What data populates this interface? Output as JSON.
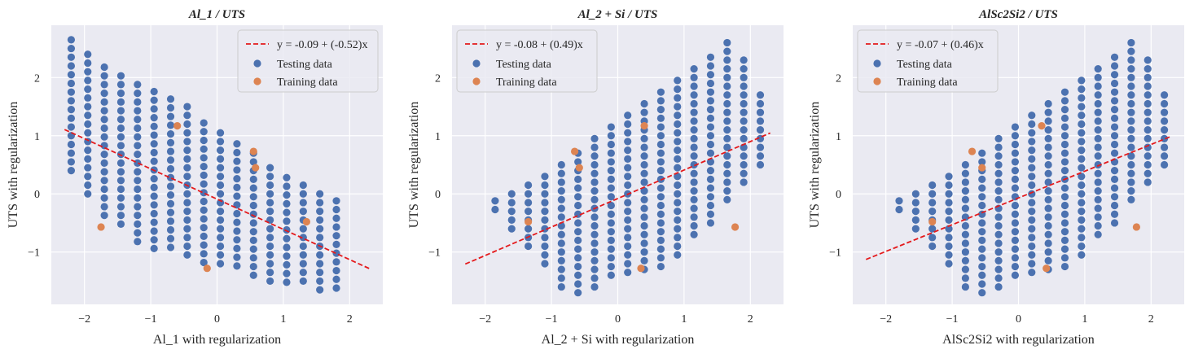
{
  "chart_data": [
    {
      "type": "scatter",
      "title": "Al_1 / UTS",
      "xlabel": "Al_1 with regularization",
      "ylabel": "UTS with regularization",
      "xlim": [
        -2.5,
        2.5
      ],
      "ylim": [
        -1.9,
        2.9
      ],
      "xticks": [
        -2,
        -1,
        0,
        1,
        2
      ],
      "yticks": [
        -1,
        0,
        1,
        2
      ],
      "grid": true,
      "legend_placement": "top-right",
      "fit_line": {
        "label": "y = -0.09 + (-0.52)x",
        "intercept": -0.09,
        "slope": -0.52,
        "x_range": [
          -2.3,
          2.3
        ],
        "color": "#e41a1c"
      },
      "testing": {
        "name": "Testing data",
        "color": "#4c72b0",
        "grid_x": [
          -2.2,
          -1.95,
          -1.7,
          -1.45,
          -1.2,
          -0.95,
          -0.7,
          -0.45,
          -0.2,
          0.05,
          0.3,
          0.55,
          0.8,
          1.05,
          1.3,
          1.55,
          1.8
        ],
        "top_y": [
          2.65,
          2.4,
          2.18,
          2.03,
          1.88,
          1.76,
          1.63,
          1.5,
          1.22,
          1.05,
          0.86,
          0.7,
          0.45,
          0.28,
          0.15,
          0.0,
          -0.12
        ],
        "bottom_y": [
          0.35,
          -0.05,
          -0.4,
          -0.65,
          -0.85,
          -0.95,
          -1.05,
          -1.15,
          -1.23,
          -1.3,
          -1.38,
          -1.45,
          -1.5,
          -1.55,
          -1.6,
          -1.65,
          -1.7
        ],
        "step_y": 0.15
      },
      "training": {
        "name": "Training data",
        "color": "#dd8452",
        "x": [
          -1.75,
          -0.6,
          -0.15,
          0.55,
          0.58,
          1.35
        ],
        "y": [
          -0.57,
          1.17,
          -1.28,
          0.73,
          0.45,
          -0.48
        ]
      }
    },
    {
      "type": "scatter",
      "title": "Al_2 + Si / UTS",
      "xlabel": "Al_2 + Si with regularization",
      "ylabel": "UTS with regularization",
      "xlim": [
        -2.5,
        2.5
      ],
      "ylim": [
        -1.9,
        2.9
      ],
      "xticks": [
        -2,
        -1,
        0,
        1,
        2
      ],
      "yticks": [
        -1,
        0,
        1,
        2
      ],
      "grid": true,
      "legend_placement": "top-left",
      "fit_line": {
        "label": "y = -0.08 + (0.49)x",
        "intercept": -0.08,
        "slope": 0.49,
        "x_range": [
          -2.3,
          2.3
        ],
        "color": "#e41a1c"
      },
      "testing": {
        "name": "Testing data",
        "color": "#4c72b0",
        "grid_x": [
          -1.85,
          -1.6,
          -1.35,
          -1.1,
          -0.85,
          -0.6,
          -0.35,
          -0.1,
          0.15,
          0.4,
          0.65,
          0.9,
          1.15,
          1.4,
          1.65,
          1.9,
          2.15
        ],
        "top_y": [
          -0.12,
          0.0,
          0.15,
          0.3,
          0.5,
          0.7,
          0.95,
          1.15,
          1.35,
          1.55,
          1.75,
          1.95,
          2.15,
          2.35,
          2.6,
          2.3,
          1.7
        ],
        "bottom_y": [
          -0.4,
          -0.7,
          -1.0,
          -1.3,
          -1.6,
          -1.7,
          -1.6,
          -1.5,
          -1.4,
          -1.35,
          -1.25,
          -1.1,
          -0.8,
          -0.5,
          -0.1,
          0.1,
          0.4
        ],
        "step_y": 0.15
      },
      "training": {
        "name": "Training data",
        "color": "#dd8452",
        "x": [
          -1.35,
          -0.65,
          -0.58,
          0.35,
          0.4,
          1.77
        ],
        "y": [
          -0.48,
          0.73,
          0.45,
          -1.28,
          1.17,
          -0.57
        ]
      }
    },
    {
      "type": "scatter",
      "title": "AlSc2Si2 / UTS",
      "xlabel": "AlSc2Si2 with regularization",
      "ylabel": "UTS with regularization",
      "xlim": [
        -2.5,
        2.5
      ],
      "ylim": [
        -1.9,
        2.9
      ],
      "xticks": [
        -2,
        -1,
        0,
        1,
        2
      ],
      "yticks": [
        -1,
        0,
        1,
        2
      ],
      "grid": true,
      "legend_placement": "top-left",
      "fit_line": {
        "label": "y = -0.07 + (0.46)x",
        "intercept": -0.07,
        "slope": 0.46,
        "x_range": [
          -2.3,
          2.3
        ],
        "color": "#e41a1c"
      },
      "testing": {
        "name": "Testing data",
        "color": "#4c72b0",
        "grid_x": [
          -1.8,
          -1.55,
          -1.3,
          -1.05,
          -0.8,
          -0.55,
          -0.3,
          -0.05,
          0.2,
          0.45,
          0.7,
          0.95,
          1.2,
          1.45,
          1.7,
          1.95,
          2.2
        ],
        "top_y": [
          -0.12,
          0.0,
          0.15,
          0.3,
          0.5,
          0.7,
          0.95,
          1.15,
          1.35,
          1.55,
          1.75,
          1.95,
          2.15,
          2.35,
          2.6,
          2.3,
          1.7
        ],
        "bottom_y": [
          -0.4,
          -0.7,
          -1.0,
          -1.3,
          -1.6,
          -1.7,
          -1.6,
          -1.5,
          -1.4,
          -1.35,
          -1.25,
          -1.1,
          -0.8,
          -0.5,
          -0.1,
          0.1,
          0.4
        ],
        "step_y": 0.15
      },
      "training": {
        "name": "Training data",
        "color": "#dd8452",
        "x": [
          -1.3,
          -0.7,
          -0.55,
          0.35,
          0.42,
          1.78
        ],
        "y": [
          -0.48,
          0.73,
          0.45,
          1.17,
          -1.28,
          -0.57
        ]
      }
    }
  ],
  "style": {
    "plot_background": "#eaeaf2",
    "grid_color": "#ffffff"
  }
}
